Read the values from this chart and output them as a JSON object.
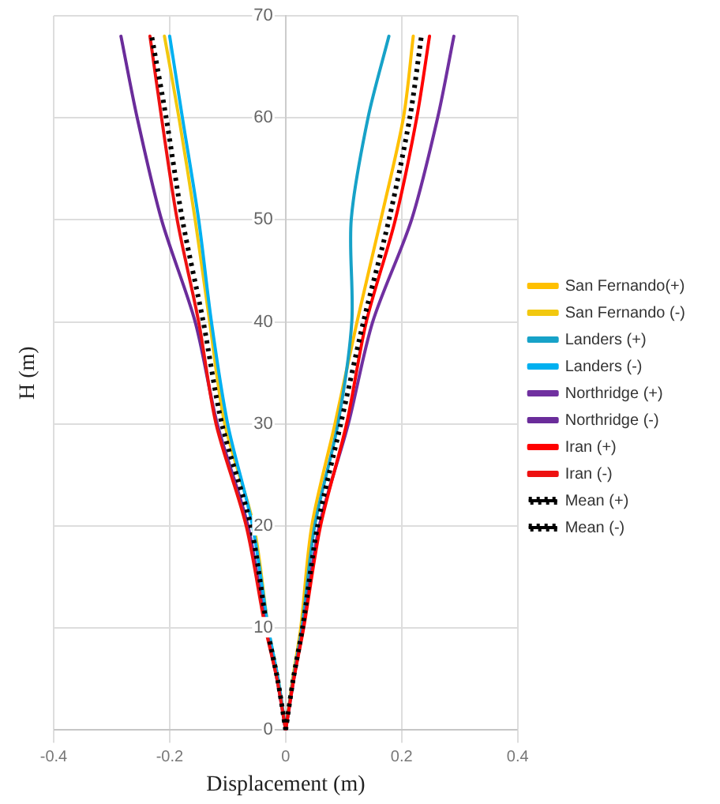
{
  "chart_data": {
    "type": "line",
    "xlabel": "Displacement (m)",
    "ylabel": "H (m)",
    "xlim": [
      -0.4,
      0.4
    ],
    "xticks": [
      -0.4,
      -0.2,
      0,
      0.2,
      0.4
    ],
    "ylim": [
      0,
      70
    ],
    "yticks": [
      0,
      10,
      20,
      30,
      40,
      50,
      60,
      70
    ],
    "grid": true,
    "legend": "right",
    "marker": "none",
    "line_style": "solid",
    "series": [
      {
        "name": "San Fernando(+)",
        "color": "#ffc000",
        "x": [
          0,
          0.012,
          0.026,
          0.045,
          0.085,
          0.123,
          0.164,
          0.203,
          0.22
        ],
        "values": [
          0,
          5,
          10,
          20,
          30,
          40,
          50,
          60,
          68
        ]
      },
      {
        "name": "San Fernando (-)",
        "color": "#f2c80f",
        "x": [
          0,
          -0.013,
          -0.03,
          -0.055,
          -0.105,
          -0.131,
          -0.156,
          -0.184,
          -0.209
        ],
        "values": [
          0,
          5,
          10,
          20,
          30,
          40,
          50,
          60,
          68
        ]
      },
      {
        "name": "Landers (+)",
        "color": "#17a2c8",
        "x": [
          0,
          0.013,
          0.028,
          0.05,
          0.09,
          0.114,
          0.113,
          0.142,
          0.178
        ],
        "values": [
          0,
          5,
          10,
          20,
          30,
          40,
          50,
          60,
          68
        ]
      },
      {
        "name": "Landers (-)",
        "color": "#00b0f0",
        "x": [
          0,
          -0.013,
          -0.03,
          -0.057,
          -0.1,
          -0.128,
          -0.15,
          -0.178,
          -0.2
        ],
        "values": [
          0,
          5,
          10,
          20,
          30,
          40,
          50,
          60,
          68
        ]
      },
      {
        "name": "Northridge (+)",
        "color": "#7030a0",
        "x": [
          0,
          0.014,
          0.03,
          0.058,
          0.108,
          0.15,
          0.217,
          0.262,
          0.29
        ],
        "values": [
          0,
          5,
          10,
          20,
          30,
          40,
          50,
          60,
          68
        ]
      },
      {
        "name": "Northridge (-)",
        "color": "#6a2c9a",
        "x": [
          0,
          -0.015,
          -0.034,
          -0.065,
          -0.118,
          -0.156,
          -0.214,
          -0.256,
          -0.284
        ],
        "values": [
          0,
          5,
          10,
          20,
          30,
          40,
          50,
          60,
          68
        ]
      },
      {
        "name": "Iran (+)",
        "color": "#ff0000",
        "x": [
          0,
          0.014,
          0.031,
          0.06,
          0.105,
          0.139,
          0.189,
          0.226,
          0.248
        ],
        "values": [
          0,
          5,
          10,
          20,
          30,
          40,
          50,
          60,
          68
        ]
      },
      {
        "name": "Iran (-)",
        "color": "#ee1111",
        "x": [
          0,
          -0.015,
          -0.035,
          -0.068,
          -0.12,
          -0.15,
          -0.187,
          -0.214,
          -0.234
        ],
        "values": [
          0,
          5,
          10,
          20,
          30,
          40,
          50,
          60,
          68
        ]
      },
      {
        "name": "Mean (+)",
        "color": "#000000",
        "line_style": "dotted",
        "x": [
          0,
          0.013,
          0.029,
          0.055,
          0.095,
          0.134,
          0.178,
          0.214,
          0.234
        ],
        "values": [
          0,
          5,
          10,
          20,
          30,
          40,
          50,
          60,
          68
        ]
      },
      {
        "name": "Mean (-)",
        "color": "#000000",
        "line_style": "dotted",
        "x": [
          0,
          -0.014,
          -0.032,
          -0.06,
          -0.11,
          -0.142,
          -0.178,
          -0.206,
          -0.231
        ],
        "values": [
          0,
          5,
          10,
          20,
          30,
          40,
          50,
          60,
          68
        ]
      }
    ]
  }
}
